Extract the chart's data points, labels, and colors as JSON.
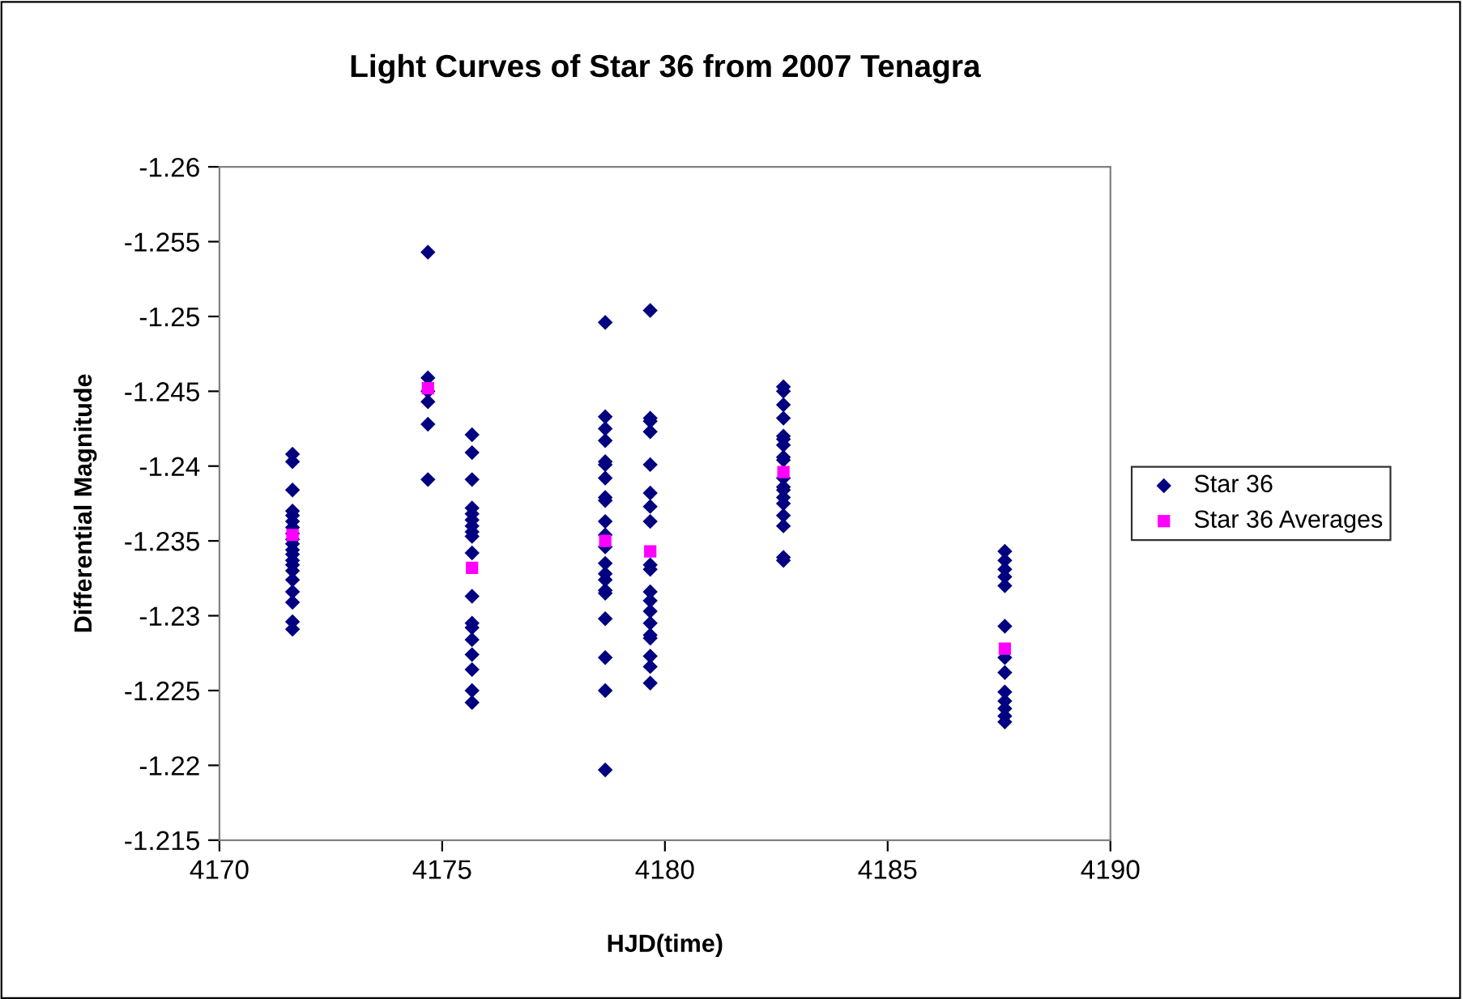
{
  "chart_data": {
    "type": "scatter",
    "title": "Light Curves of Star 36 from 2007 Tenagra",
    "xlabel": "HJD(time)",
    "ylabel": "Differential Magnitude",
    "xlim": [
      4170,
      4190
    ],
    "xticks": [
      4170,
      4175,
      4180,
      4185,
      4190
    ],
    "ylim": [
      -1.215,
      -1.26
    ],
    "yticks": [
      -1.26,
      -1.255,
      -1.25,
      -1.245,
      -1.24,
      -1.235,
      -1.23,
      -1.225,
      -1.22,
      -1.215
    ],
    "grid": false,
    "legend": "right",
    "series": [
      {
        "name": "Star 36",
        "color": "#000080",
        "marker": "diamond",
        "x": [
          4171.64,
          4171.64,
          4171.64,
          4171.64,
          4171.64,
          4171.64,
          4171.64,
          4171.64,
          4171.64,
          4171.64,
          4171.64,
          4171.64,
          4171.64,
          4171.64,
          4171.64,
          4171.64,
          4171.64,
          4171.64,
          4171.64,
          4171.64,
          4174.68,
          4174.68,
          4174.68,
          4174.68,
          4174.68,
          4174.68,
          4175.67,
          4175.67,
          4175.67,
          4175.67,
          4175.67,
          4175.67,
          4175.67,
          4175.67,
          4175.67,
          4175.67,
          4175.67,
          4175.67,
          4175.67,
          4175.67,
          4175.67,
          4175.67,
          4175.67,
          4175.67,
          4178.66,
          4178.66,
          4178.66,
          4178.66,
          4178.66,
          4178.66,
          4178.66,
          4178.66,
          4178.66,
          4178.66,
          4178.66,
          4178.66,
          4178.66,
          4178.66,
          4178.66,
          4178.66,
          4178.66,
          4178.66,
          4178.66,
          4178.66,
          4178.66,
          4179.67,
          4179.67,
          4179.67,
          4179.67,
          4179.67,
          4179.67,
          4179.67,
          4179.67,
          4179.67,
          4179.67,
          4179.67,
          4179.67,
          4179.67,
          4179.67,
          4179.67,
          4179.67,
          4179.67,
          4179.67,
          4179.67,
          4182.66,
          4182.66,
          4182.66,
          4182.66,
          4182.66,
          4182.66,
          4182.66,
          4182.66,
          4182.66,
          4182.66,
          4182.66,
          4182.66,
          4182.66,
          4182.66,
          4182.66,
          4182.66,
          4182.66,
          4182.66,
          4187.63,
          4187.63,
          4187.63,
          4187.63,
          4187.63,
          4187.63,
          4187.63,
          4187.63,
          4187.63,
          4187.63,
          4187.63,
          4187.63,
          4187.63
        ],
        "values": [
          -1.2408,
          -1.2403,
          -1.2384,
          -1.237,
          -1.2367,
          -1.2363,
          -1.2359,
          -1.2355,
          -1.2351,
          -1.2348,
          -1.2344,
          -1.2341,
          -1.2337,
          -1.2334,
          -1.233,
          -1.2324,
          -1.2316,
          -1.2309,
          -1.2296,
          -1.2291,
          -1.2543,
          -1.2459,
          -1.245,
          -1.2443,
          -1.2428,
          -1.2391,
          -1.2421,
          -1.2409,
          -1.2391,
          -1.2372,
          -1.2368,
          -1.2364,
          -1.236,
          -1.2356,
          -1.2353,
          -1.2342,
          -1.2313,
          -1.2295,
          -1.2292,
          -1.2284,
          -1.2274,
          -1.2264,
          -1.225,
          -1.2242,
          -1.2496,
          -1.2433,
          -1.2425,
          -1.2417,
          -1.2403,
          -1.2401,
          -1.2392,
          -1.2379,
          -1.2377,
          -1.2363,
          -1.2354,
          -1.2346,
          -1.2335,
          -1.2328,
          -1.2324,
          -1.2317,
          -1.2315,
          -1.2298,
          -1.2272,
          -1.225,
          -1.2197,
          -1.2504,
          -1.2432,
          -1.243,
          -1.2423,
          -1.2401,
          -1.2382,
          -1.2373,
          -1.2363,
          -1.2334,
          -1.2331,
          -1.2316,
          -1.231,
          -1.2303,
          -1.2295,
          -1.2287,
          -1.2285,
          -1.2273,
          -1.2266,
          -1.2255,
          -1.2453,
          -1.245,
          -1.2441,
          -1.2432,
          -1.242,
          -1.2418,
          -1.2414,
          -1.2406,
          -1.2404,
          -1.2392,
          -1.2386,
          -1.2384,
          -1.2379,
          -1.2375,
          -1.2367,
          -1.236,
          -1.2339,
          -1.2337,
          -1.2343,
          -1.2337,
          -1.2331,
          -1.2326,
          -1.232,
          -1.2293,
          -1.2272,
          -1.2262,
          -1.2249,
          -1.2243,
          -1.2238,
          -1.2233,
          -1.2229
        ]
      },
      {
        "name": "Star 36 Averages",
        "color": "#ff00ff",
        "marker": "square",
        "x": [
          4171.64,
          4174.68,
          4175.67,
          4178.66,
          4179.67,
          4182.66,
          4187.63
        ],
        "values": [
          -1.2354,
          -1.2452,
          -1.2332,
          -1.235,
          -1.2343,
          -1.2396,
          -1.2278
        ]
      }
    ]
  }
}
